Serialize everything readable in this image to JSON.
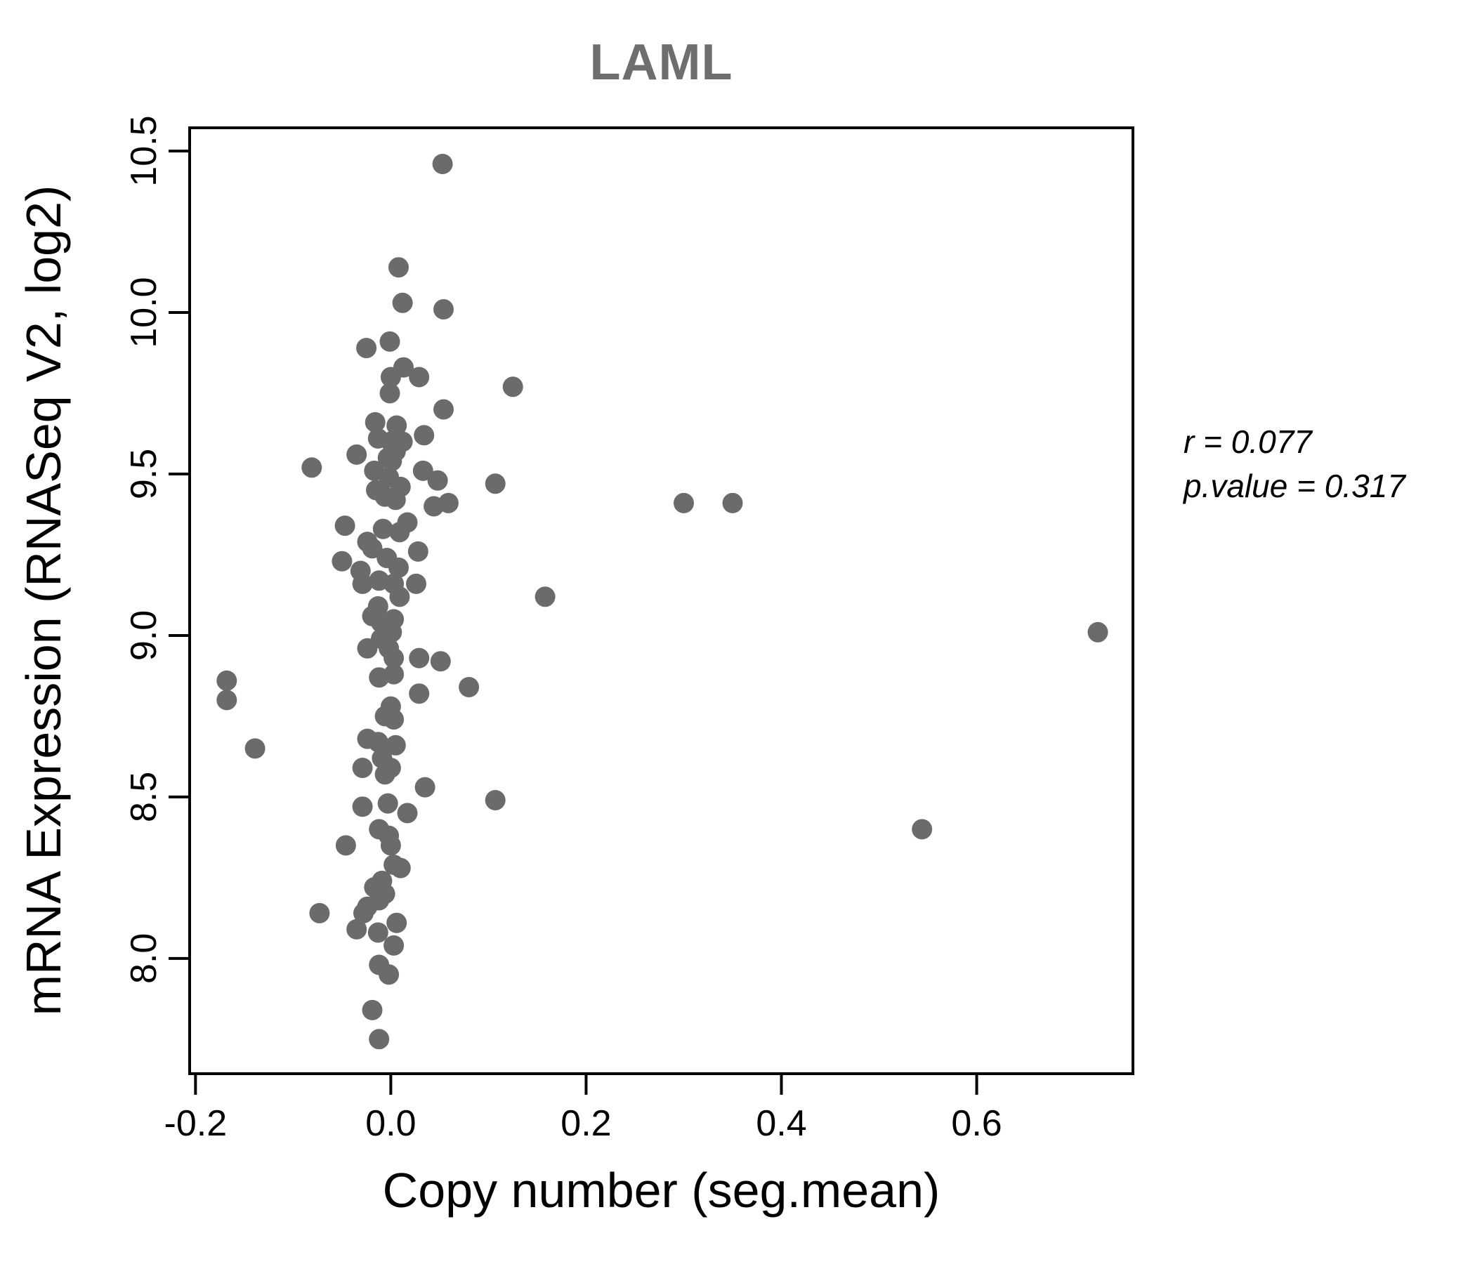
{
  "chart": {
    "title": "LAML",
    "xlabel": "Copy number (seg.mean)",
    "ylabel": "mRNA Expression (RNASeq V2, log2)",
    "annotation": {
      "line1": "r = 0.077",
      "line2": "p.value = 0.317"
    }
  },
  "chart_data": {
    "type": "scatter",
    "title": "LAML",
    "xlabel": "Copy number (seg.mean)",
    "ylabel": "mRNA Expression (RNASeq V2, log2)",
    "legend": null,
    "grid": false,
    "point_color": "#6b6b6b",
    "title_color": "#6e6e6e",
    "axis_color": "#000000",
    "xlim": [
      -0.206,
      0.76
    ],
    "ylim": [
      7.643,
      10.572
    ],
    "x_ticks": [
      -0.2,
      0.0,
      0.2,
      0.4,
      0.6
    ],
    "x_tick_labels": [
      "-0.2",
      "0.0",
      "0.2",
      "0.4",
      "0.6"
    ],
    "y_ticks": [
      8.0,
      8.5,
      9.0,
      9.5,
      10.0,
      10.5
    ],
    "y_tick_labels": [
      "8.0",
      "8.5",
      "9.0",
      "9.5",
      "10.0",
      "10.5"
    ],
    "annotations": [
      {
        "text": "r = 0.077"
      },
      {
        "text": "p.value = 0.317"
      }
    ],
    "points": [
      [
        0.053,
        10.46
      ],
      [
        0.008,
        10.14
      ],
      [
        0.012,
        10.03
      ],
      [
        0.054,
        10.01
      ],
      [
        -0.001,
        9.91
      ],
      [
        -0.025,
        9.89
      ],
      [
        0.013,
        9.83
      ],
      [
        0.0,
        9.8
      ],
      [
        0.029,
        9.8
      ],
      [
        0.125,
        9.77
      ],
      [
        -0.001,
        9.75
      ],
      [
        0.054,
        9.7
      ],
      [
        -0.016,
        9.66
      ],
      [
        0.006,
        9.65
      ],
      [
        0.034,
        9.62
      ],
      [
        -0.013,
        9.61
      ],
      [
        0.0,
        9.6
      ],
      [
        0.012,
        9.6
      ],
      [
        0.005,
        9.57
      ],
      [
        -0.035,
        9.56
      ],
      [
        -0.003,
        9.55
      ],
      [
        0.001,
        9.54
      ],
      [
        -0.081,
        9.52
      ],
      [
        -0.017,
        9.51
      ],
      [
        0.033,
        9.51
      ],
      [
        -0.002,
        9.49
      ],
      [
        0.048,
        9.48
      ],
      [
        0.107,
        9.47
      ],
      [
        0.01,
        9.46
      ],
      [
        -0.015,
        9.45
      ],
      [
        -0.006,
        9.43
      ],
      [
        0.005,
        9.42
      ],
      [
        0.059,
        9.41
      ],
      [
        0.3,
        9.41
      ],
      [
        0.35,
        9.41
      ],
      [
        0.044,
        9.4
      ],
      [
        0.017,
        9.35
      ],
      [
        -0.047,
        9.34
      ],
      [
        -0.008,
        9.33
      ],
      [
        0.009,
        9.32
      ],
      [
        -0.024,
        9.29
      ],
      [
        -0.019,
        9.27
      ],
      [
        0.028,
        9.26
      ],
      [
        -0.004,
        9.24
      ],
      [
        -0.05,
        9.23
      ],
      [
        0.008,
        9.21
      ],
      [
        -0.031,
        9.2
      ],
      [
        -0.012,
        9.17
      ],
      [
        -0.029,
        9.16
      ],
      [
        0.003,
        9.16
      ],
      [
        0.026,
        9.16
      ],
      [
        0.009,
        9.12
      ],
      [
        0.158,
        9.12
      ],
      [
        -0.013,
        9.09
      ],
      [
        -0.019,
        9.06
      ],
      [
        0.003,
        9.05
      ],
      [
        -0.01,
        9.04
      ],
      [
        0.001,
        9.01
      ],
      [
        0.724,
        9.01
      ],
      [
        -0.01,
        8.99
      ],
      [
        -0.024,
        8.96
      ],
      [
        -0.002,
        8.96
      ],
      [
        0.003,
        8.93
      ],
      [
        0.029,
        8.93
      ],
      [
        0.051,
        8.92
      ],
      [
        0.003,
        8.88
      ],
      [
        -0.012,
        8.87
      ],
      [
        -0.168,
        8.86
      ],
      [
        0.08,
        8.84
      ],
      [
        0.029,
        8.82
      ],
      [
        -0.168,
        8.8
      ],
      [
        0.0,
        8.78
      ],
      [
        -0.006,
        8.75
      ],
      [
        0.003,
        8.74
      ],
      [
        -0.024,
        8.68
      ],
      [
        -0.013,
        8.67
      ],
      [
        0.005,
        8.66
      ],
      [
        -0.139,
        8.65
      ],
      [
        -0.009,
        8.62
      ],
      [
        0.0,
        8.59
      ],
      [
        -0.029,
        8.59
      ],
      [
        -0.006,
        8.57
      ],
      [
        0.035,
        8.53
      ],
      [
        0.107,
        8.49
      ],
      [
        -0.003,
        8.48
      ],
      [
        -0.029,
        8.47
      ],
      [
        0.017,
        8.45
      ],
      [
        -0.012,
        8.4
      ],
      [
        0.544,
        8.4
      ],
      [
        -0.002,
        8.38
      ],
      [
        -0.046,
        8.35
      ],
      [
        0.0,
        8.35
      ],
      [
        0.003,
        8.29
      ],
      [
        0.01,
        8.28
      ],
      [
        -0.009,
        8.24
      ],
      [
        -0.017,
        8.22
      ],
      [
        -0.006,
        8.2
      ],
      [
        -0.012,
        8.18
      ],
      [
        -0.024,
        8.16
      ],
      [
        -0.028,
        8.14
      ],
      [
        -0.073,
        8.14
      ],
      [
        0.006,
        8.11
      ],
      [
        -0.035,
        8.09
      ],
      [
        -0.013,
        8.08
      ],
      [
        0.003,
        8.04
      ],
      [
        -0.012,
        7.98
      ],
      [
        -0.002,
        7.95
      ],
      [
        -0.019,
        7.84
      ],
      [
        -0.012,
        7.75
      ]
    ]
  }
}
